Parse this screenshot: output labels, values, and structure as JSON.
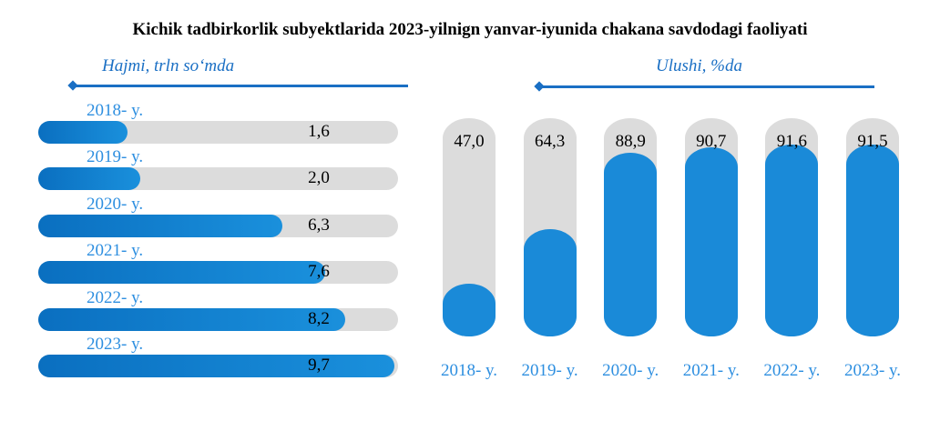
{
  "title": "Kichik tadbirkorlik subyektlarida 2023-yilnign yanvar-iyunida chakana savdodagi faoliyati",
  "chart_data": [
    {
      "type": "bar",
      "orientation": "horizontal",
      "subtitle": "Hajmi, trln so‘mda",
      "categories": [
        "2018- y.",
        "2019- y.",
        "2020- y.",
        "2021- y.",
        "2022- y.",
        "2023- y."
      ],
      "values": [
        1.6,
        2.0,
        6.3,
        7.6,
        8.2,
        9.7
      ],
      "labels": [
        "1,6",
        "2,0",
        "6,3",
        "7,6",
        "8,2",
        "9,7"
      ],
      "color": "#0a6fc0",
      "track_color": "#dcdcdc"
    },
    {
      "type": "bar",
      "orientation": "vertical",
      "subtitle": "Ulushi, %da",
      "categories": [
        "2018- y.",
        "2019- y.",
        "2020- y.",
        "2021- y.",
        "2022- y.",
        "2023- y."
      ],
      "values": [
        47.0,
        64.3,
        88.9,
        90.7,
        91.6,
        91.5
      ],
      "labels": [
        "47,0",
        "64,3",
        "88,9",
        "90,7",
        "91,6",
        "91,5"
      ],
      "ylim": [
        30,
        100
      ],
      "color": "#1a8ad8",
      "track_color": "#dcdcdc"
    }
  ]
}
